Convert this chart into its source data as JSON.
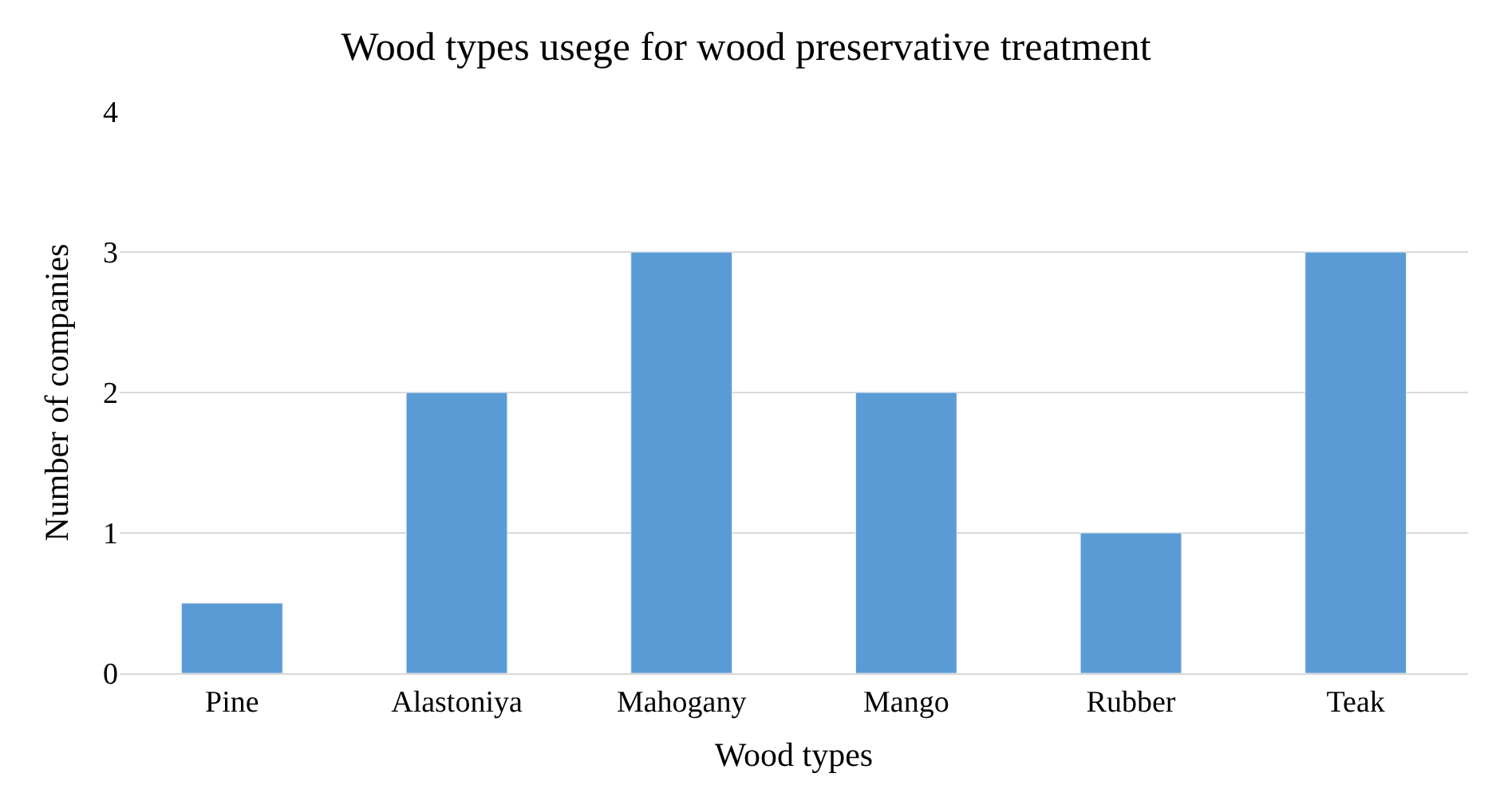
{
  "chart_data": {
    "type": "bar",
    "title": "Wood types usege for wood preservative treatment",
    "xlabel": "Wood types",
    "ylabel": "Number of companies",
    "categories": [
      "Pine",
      "Alastoniya",
      "Mahogany",
      "Mango",
      "Rubber",
      "Teak"
    ],
    "values": [
      0.5,
      2,
      3,
      2,
      1,
      3
    ],
    "color": "#5b9bd5",
    "ylim": [
      0,
      4
    ],
    "yticks": [
      0,
      1,
      2,
      3,
      4
    ],
    "grid": "y",
    "legend": false
  }
}
